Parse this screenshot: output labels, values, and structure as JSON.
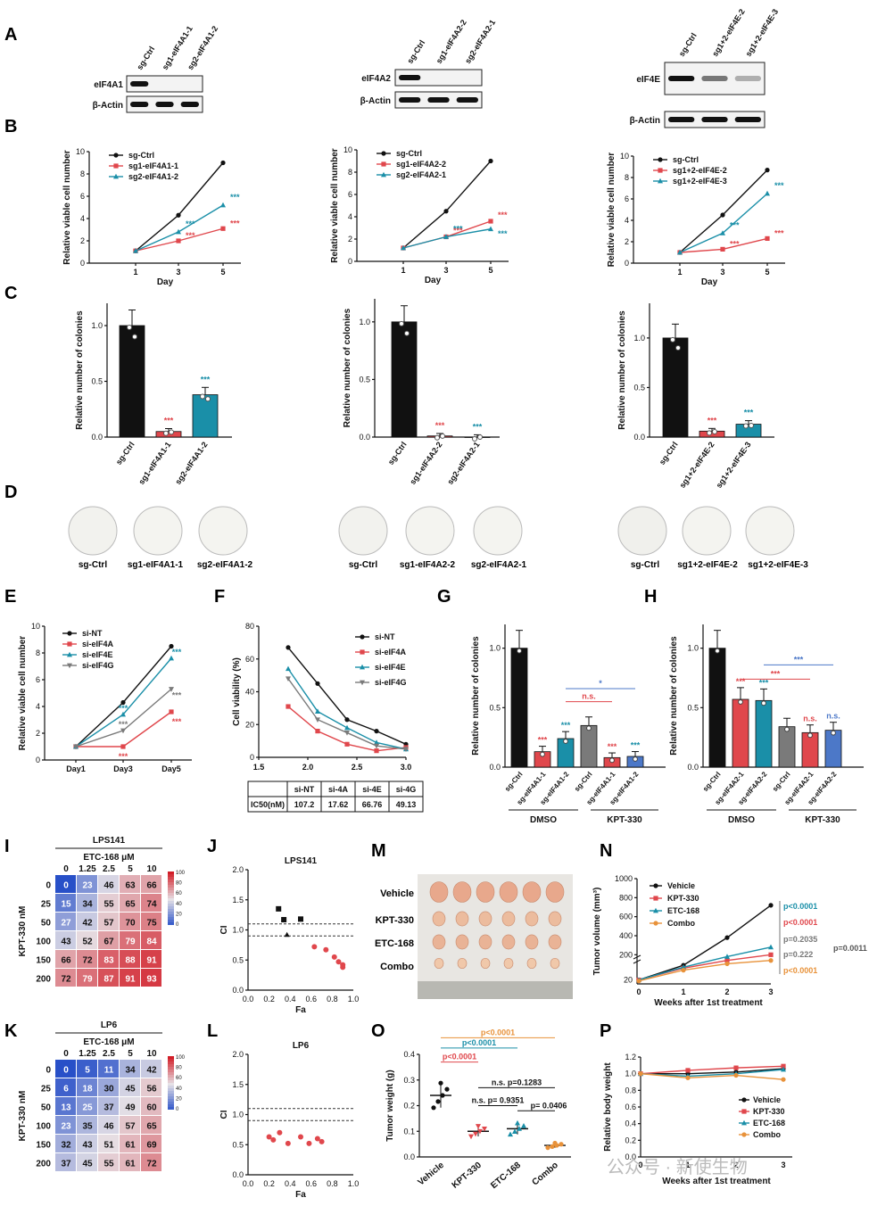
{
  "panels": {
    "A": "A",
    "B": "B",
    "C": "C",
    "D": "D",
    "E": "E",
    "F": "F",
    "G": "G",
    "H": "H",
    "I": "I",
    "J": "J",
    "K": "K",
    "L": "L",
    "M": "M",
    "N": "N",
    "O": "O",
    "P": "P"
  },
  "blots": [
    {
      "lanes": [
        "sg-Ctrl",
        "sg1-eIF4A1-1",
        "sg2-eIF4A1-2"
      ],
      "rows": [
        "eIF4A1",
        "β-Actin"
      ]
    },
    {
      "lanes": [
        "sg-Ctrl",
        "sg1-eIF4A2-2",
        "sg2-eIF4A2-1"
      ],
      "rows": [
        "eIF4A2",
        "β-Actin"
      ]
    },
    {
      "lanes": [
        "sg-Ctrl",
        "sg1+2-eIF4E-2",
        "sg1+2-eIF4E-3"
      ],
      "rows": [
        "eIF4E",
        "β-Actin"
      ]
    }
  ],
  "colors": {
    "black": "#111111",
    "red": "#e0474c",
    "teal": "#1a8fa8",
    "gray": "#7a7a7a",
    "orange": "#e8923a",
    "blue": "#4c78c8"
  },
  "chart_data": [
    {
      "id": "B1",
      "type": "line",
      "x": [
        1,
        3,
        5
      ],
      "xlabel": "Day",
      "ylabel": "Relative viable cell number",
      "ylim": [
        0,
        10
      ],
      "series": [
        {
          "name": "sg-Ctrl",
          "values": [
            1.1,
            4.3,
            9.0
          ]
        },
        {
          "name": "sg1-eIF4A1-1",
          "values": [
            1.1,
            2.0,
            3.1
          ]
        },
        {
          "name": "sg2-eIF4A1-2",
          "values": [
            1.1,
            2.8,
            5.2
          ]
        }
      ]
    },
    {
      "id": "B2",
      "type": "line",
      "x": [
        1,
        3,
        5
      ],
      "xlabel": "Day",
      "ylabel": "Relative viable cell number",
      "ylim": [
        0,
        10
      ],
      "series": [
        {
          "name": "sg-Ctrl",
          "values": [
            1.2,
            4.5,
            9.0
          ]
        },
        {
          "name": "sg1-eIF4A2-2",
          "values": [
            1.2,
            2.2,
            3.6
          ]
        },
        {
          "name": "sg2-eIF4A2-1",
          "values": [
            1.2,
            2.2,
            2.9
          ]
        }
      ]
    },
    {
      "id": "B3",
      "type": "line",
      "x": [
        1,
        3,
        5
      ],
      "xlabel": "Day",
      "ylabel": "Relative viable cell number",
      "ylim": [
        0,
        10
      ],
      "series": [
        {
          "name": "sg-Ctrl",
          "values": [
            1.0,
            4.5,
            8.7
          ]
        },
        {
          "name": "sg1+2-eIF4E-2",
          "values": [
            1.0,
            1.3,
            2.3
          ]
        },
        {
          "name": "sg1+2-eIF4E-3",
          "values": [
            1.0,
            2.8,
            6.5
          ]
        }
      ]
    },
    {
      "id": "C1",
      "type": "bar",
      "categories": [
        "sg-Ctrl",
        "sg1-eIF4A1-1",
        "sg2-eIF4A1-2"
      ],
      "values": [
        1.0,
        0.05,
        0.38
      ],
      "ylabel": "Relative number of colonies",
      "ylim": [
        0,
        1.2
      ]
    },
    {
      "id": "C2",
      "type": "bar",
      "categories": [
        "sg-Ctrl",
        "sg1-eIF4A2-2",
        "sg2-eIF4A2-1"
      ],
      "values": [
        1.0,
        0.01,
        0.0
      ],
      "ylabel": "Relative number of colonies",
      "ylim": [
        0,
        1.2
      ]
    },
    {
      "id": "C3",
      "type": "bar",
      "categories": [
        "sg-Ctrl",
        "sg1+2-eIF4E-2",
        "sg1+2-eIF4E-3"
      ],
      "values": [
        1.0,
        0.06,
        0.13
      ],
      "ylabel": "Relative number of colonies",
      "ylim": [
        0,
        1.35
      ]
    },
    {
      "id": "E",
      "type": "line",
      "x": [
        "Day1",
        "Day3",
        "Day5"
      ],
      "ylabel": "Relative viable cell number",
      "ylim": [
        0,
        10
      ],
      "series": [
        {
          "name": "si-NT",
          "values": [
            1.0,
            4.3,
            8.5
          ]
        },
        {
          "name": "si-eIF4A",
          "values": [
            1.0,
            1.0,
            3.6
          ]
        },
        {
          "name": "si-eIF4E",
          "values": [
            1.0,
            3.4,
            7.6
          ]
        },
        {
          "name": "si-eIF4G",
          "values": [
            1.0,
            2.2,
            5.3
          ]
        }
      ]
    },
    {
      "id": "F",
      "type": "line",
      "x": [
        1.8,
        2.1,
        2.4,
        2.7,
        3.0
      ],
      "ylabel": "Cell viability (%)",
      "ylim": [
        0,
        80
      ],
      "xlim": [
        1.5,
        3.0
      ],
      "series": [
        {
          "name": "si-NT",
          "values": [
            67,
            45,
            23,
            16,
            8
          ]
        },
        {
          "name": "si-eIF4A",
          "values": [
            31,
            16,
            8,
            4,
            6
          ]
        },
        {
          "name": "si-eIF4E",
          "values": [
            54,
            28,
            18,
            9,
            5
          ]
        },
        {
          "name": "si-eIF4G",
          "values": [
            48,
            23,
            15,
            7,
            5
          ]
        }
      ]
    },
    {
      "id": "F-table",
      "type": "table",
      "columns": [
        "",
        "si-NT",
        "si-4A",
        "si-4E",
        "si-4G"
      ],
      "rows": [
        [
          "IC50(nM)",
          "107.2",
          "17.62",
          "66.76",
          "49.13"
        ]
      ]
    },
    {
      "id": "G",
      "type": "bar",
      "categories": [
        "sg-Ctrl",
        "sg-eIF4A1-1",
        "sg-eIF4A1-2",
        "sg-Ctrl",
        "sg-eIF4A1-1",
        "sg-eIF4A1-2"
      ],
      "groups": [
        "DMSO",
        "KPT-330"
      ],
      "values": [
        1.0,
        0.13,
        0.24,
        0.35,
        0.08,
        0.09
      ],
      "ylabel": "Relative number of colonies",
      "ylim": [
        0,
        1.2
      ]
    },
    {
      "id": "H",
      "type": "bar",
      "categories": [
        "sg-Ctrl",
        "sg-eIF4A2-1",
        "sg-eIF4A2-2",
        "sg-Ctrl",
        "sg-eIF4A2-1",
        "sg-eIF4A2-2"
      ],
      "groups": [
        "DMSO",
        "KPT-330"
      ],
      "values": [
        1.0,
        0.57,
        0.56,
        0.34,
        0.29,
        0.31
      ],
      "ylabel": "Relative number of colonies",
      "ylim": [
        0,
        1.2
      ]
    },
    {
      "id": "I",
      "type": "heatmap",
      "title": "LPS141",
      "xlabel": "ETC-168 μM",
      "ylabel": "KPT-330 nM",
      "x": [
        "0",
        "1.25",
        "2.5",
        "5",
        "10"
      ],
      "y": [
        "0",
        "25",
        "50",
        "100",
        "150",
        "200"
      ],
      "values": [
        [
          0,
          23,
          46,
          63,
          66
        ],
        [
          15,
          34,
          55,
          65,
          74
        ],
        [
          27,
          42,
          57,
          70,
          75
        ],
        [
          43,
          52,
          67,
          79,
          84
        ],
        [
          66,
          72,
          83,
          88,
          91
        ],
        [
          72,
          79,
          87,
          91,
          93
        ]
      ]
    },
    {
      "id": "K",
      "type": "heatmap",
      "title": "LP6",
      "xlabel": "ETC-168 μM",
      "ylabel": "KPT-330 nM",
      "x": [
        "0",
        "1.25",
        "2.5",
        "5",
        "10"
      ],
      "y": [
        "0",
        "25",
        "50",
        "100",
        "150",
        "200"
      ],
      "values": [
        [
          0,
          5,
          11,
          34,
          42
        ],
        [
          6,
          18,
          30,
          45,
          56
        ],
        [
          13,
          25,
          37,
          49,
          60
        ],
        [
          23,
          35,
          46,
          57,
          65
        ],
        [
          32,
          43,
          51,
          61,
          69
        ],
        [
          37,
          45,
          55,
          61,
          72
        ]
      ]
    },
    {
      "id": "J",
      "type": "scatter",
      "title": "LPS141",
      "xlabel": "Fa",
      "ylabel": "CI",
      "xlim": [
        0,
        1
      ],
      "ylim": [
        0,
        2
      ],
      "points": [
        [
          0.29,
          1.35
        ],
        [
          0.34,
          1.17
        ],
        [
          0.5,
          1.18
        ],
        [
          0.37,
          0.92
        ],
        [
          0.63,
          0.72
        ],
        [
          0.74,
          0.67
        ],
        [
          0.82,
          0.55
        ],
        [
          0.86,
          0.47
        ],
        [
          0.9,
          0.42
        ],
        [
          0.9,
          0.38
        ]
      ]
    },
    {
      "id": "L",
      "type": "scatter",
      "title": "LP6",
      "xlabel": "Fa",
      "ylabel": "CI",
      "xlim": [
        0,
        1
      ],
      "ylim": [
        0,
        2
      ],
      "points": [
        [
          0.2,
          0.63
        ],
        [
          0.24,
          0.58
        ],
        [
          0.3,
          0.7
        ],
        [
          0.38,
          0.52
        ],
        [
          0.5,
          0.63
        ],
        [
          0.58,
          0.52
        ],
        [
          0.66,
          0.6
        ],
        [
          0.7,
          0.55
        ]
      ]
    },
    {
      "id": "N",
      "type": "line",
      "xlabel": "Weeks after 1st treatment",
      "ylabel": "Tumor volume (mm³)",
      "x": [
        0,
        1,
        2,
        3
      ],
      "series": [
        {
          "name": "Vehicle",
          "values": [
            20,
            95,
            380,
            720
          ]
        },
        {
          "name": "KPT-330",
          "values": [
            20,
            80,
            140,
            200
          ]
        },
        {
          "name": "ETC-168",
          "values": [
            20,
            85,
            180,
            280
          ]
        },
        {
          "name": "Combo",
          "values": [
            15,
            70,
            105,
            140
          ]
        }
      ],
      "stats": [
        "p<0.0001",
        "p<0.0001",
        "p=0.2035",
        "p=0.222",
        "p=0.0011",
        "p<0.0001"
      ]
    },
    {
      "id": "O",
      "type": "scatter",
      "ylabel": "Tumor weight (g)",
      "ylim": [
        0,
        0.4
      ],
      "categories": [
        "Vehicle",
        "KPT-330",
        "ETC-168",
        "Combo"
      ],
      "means": [
        0.24,
        0.1,
        0.11,
        0.045
      ],
      "stats": [
        "p<0.0001",
        "p<0.0001",
        "p<0.0001",
        "n.s. p=0.1283",
        "n.s. p= 0.9351",
        "p= 0.0406"
      ]
    },
    {
      "id": "P",
      "type": "line",
      "xlabel": "Weeks after 1st treatment",
      "ylabel": "Relative body weight",
      "ylim": [
        0,
        1.2
      ],
      "x": [
        0,
        1,
        2,
        3
      ],
      "series": [
        {
          "name": "Vehicle",
          "values": [
            1.0,
            1.0,
            1.02,
            1.06
          ]
        },
        {
          "name": "KPT-330",
          "values": [
            1.0,
            1.04,
            1.07,
            1.09
          ]
        },
        {
          "name": "ETC-168",
          "values": [
            1.0,
            0.97,
            1.0,
            1.05
          ]
        },
        {
          "name": "Combo",
          "values": [
            1.0,
            0.95,
            0.98,
            0.93
          ]
        }
      ]
    }
  ],
  "d_labels": [
    [
      "sg-Ctrl",
      "sg1-eIF4A1-1",
      "sg2-eIF4A1-2"
    ],
    [
      "sg-Ctrl",
      "sg1-eIF4A2-2",
      "sg2-eIF4A2-1"
    ],
    [
      "sg-Ctrl",
      "sg1+2-eIF4E-2",
      "sg1+2-eIF4E-3"
    ]
  ],
  "m_labels": [
    "Vehicle",
    "KPT-330",
    "ETC-168",
    "Combo"
  ],
  "watermark": "公众号 · 新使生物"
}
